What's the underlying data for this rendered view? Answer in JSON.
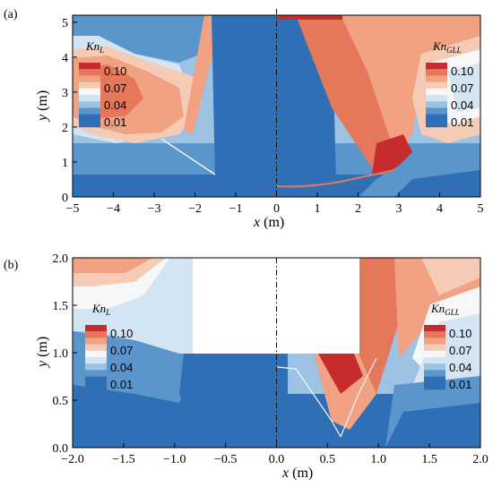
{
  "figure": {
    "panels": [
      {
        "label": "(a)",
        "xlabel_var": "x",
        "xlabel_unit": "(m)",
        "ylabel_var": "y",
        "ylabel_unit": "(m)",
        "xticks": [
          "−5",
          "−4",
          "−3",
          "−2",
          "−1",
          "0",
          "1",
          "2",
          "3",
          "4",
          "5"
        ],
        "yticks": [
          "0",
          "1",
          "2",
          "3",
          "4",
          "5"
        ],
        "legend_left": {
          "title_main": "Kn",
          "title_sub": "L",
          "values": [
            "0.10",
            "0.07",
            "0.04",
            "0.01"
          ]
        },
        "legend_right": {
          "title_main": "Kn",
          "title_sub": "GLL",
          "values": [
            "0.10",
            "0.07",
            "0.04",
            "0.01"
          ]
        }
      },
      {
        "label": "(b)",
        "xlabel_var": "x",
        "xlabel_unit": "(m)",
        "ylabel_var": "y",
        "ylabel_unit": "(m)",
        "xticks": [
          "−2.0",
          "−1.5",
          "−1.0",
          "−0.5",
          "0.0",
          "0.5",
          "1.0",
          "1.5",
          "2.0"
        ],
        "yticks": [
          "0.0",
          "0.5",
          "1.0",
          "1.5",
          "2.0"
        ],
        "legend_left": {
          "title_main": "Kn",
          "title_sub": "L",
          "values": [
            "0.10",
            "0.07",
            "0.04",
            "0.01"
          ]
        },
        "legend_right": {
          "title_main": "Kn",
          "title_sub": "GLL",
          "values": [
            "0.10",
            "0.07",
            "0.04",
            "0.01"
          ]
        }
      }
    ],
    "colors": {
      "deep_blue": "#2f6fb6",
      "mid_blue": "#5a95cc",
      "light_blue": "#9cc3e4",
      "pale_blue": "#d3e5f3",
      "white": "#f7f7f7",
      "pale_red": "#f6cbb5",
      "light_red": "#f1a283",
      "mid_red": "#e5785b",
      "deep_red": "#c72c2c"
    }
  },
  "chart_data": [
    {
      "type": "heatmap",
      "title": "",
      "xlabel": "x (m)",
      "ylabel": "y (m)",
      "xlim": [
        -5,
        5
      ],
      "ylim": [
        0,
        5.2
      ],
      "colorbar_left": {
        "label": "KnL",
        "ticks": [
          0.1,
          0.07,
          0.04,
          0.01
        ]
      },
      "colorbar_right": {
        "label": "KnGLL",
        "ticks": [
          0.1,
          0.07,
          0.04,
          0.01
        ]
      }
    },
    {
      "type": "heatmap",
      "title": "",
      "xlabel": "x (m)",
      "ylabel": "y (m)",
      "xlim": [
        -2,
        2
      ],
      "ylim": [
        0,
        2
      ],
      "colorbar_left": {
        "label": "KnL",
        "ticks": [
          0.1,
          0.07,
          0.04,
          0.01
        ]
      },
      "colorbar_right": {
        "label": "KnGLL",
        "ticks": [
          0.1,
          0.07,
          0.04,
          0.01
        ]
      }
    }
  ]
}
